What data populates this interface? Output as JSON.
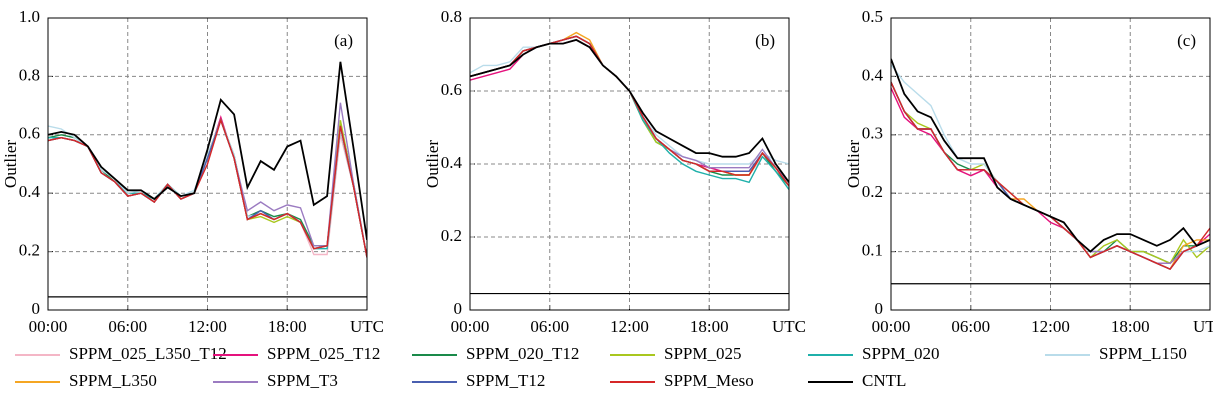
{
  "chart_data": {
    "type": "line",
    "ylabel": "Outlier",
    "x": [
      0,
      1,
      2,
      3,
      4,
      5,
      6,
      7,
      8,
      9,
      10,
      11,
      12,
      13,
      14,
      15,
      16,
      17,
      18,
      19,
      20,
      21,
      22,
      23,
      24
    ],
    "xlim": [
      0,
      24
    ],
    "xticks": [
      {
        "value": 0,
        "label": "00:00"
      },
      {
        "value": 6,
        "label": "06:00"
      },
      {
        "value": 12,
        "label": "12:00"
      },
      {
        "value": 18,
        "label": "18:00"
      },
      {
        "value": 24,
        "label": "UTC"
      }
    ],
    "grid": true,
    "panels": [
      {
        "label": "(a)",
        "ylim": [
          0,
          1
        ],
        "yticks": [
          0,
          0.2,
          0.4,
          0.6,
          0.8,
          {
            "value": 1,
            "label": "1.0"
          }
        ],
        "reference_line": 0.045
      },
      {
        "label": "(b)",
        "ylim": [
          0,
          0.8
        ],
        "yticks": [
          0,
          0.2,
          0.4,
          0.6,
          0.8
        ],
        "reference_line": 0.045
      },
      {
        "label": "(c)",
        "ylim": [
          0,
          0.5
        ],
        "yticks": [
          0,
          0.1,
          0.2,
          0.3,
          0.4,
          0.5
        ],
        "reference_line": 0.045
      }
    ],
    "series": [
      {
        "name": "SPPM_025_L350_T12",
        "color": "#f4b6c6",
        "values": [
          [
            0.58,
            0.59,
            0.58,
            0.56,
            0.47,
            0.44,
            0.39,
            0.4,
            0.37,
            0.43,
            0.38,
            0.4,
            0.52,
            0.65,
            0.52,
            0.31,
            0.33,
            0.31,
            0.33,
            0.3,
            0.19,
            0.19,
            0.6,
            0.42,
            0.18
          ],
          [
            0.64,
            0.65,
            0.66,
            0.67,
            0.71,
            0.72,
            0.73,
            0.74,
            0.75,
            0.73,
            0.67,
            0.64,
            0.6,
            0.53,
            0.47,
            0.44,
            0.41,
            0.4,
            0.38,
            0.38,
            0.37,
            0.37,
            0.42,
            0.39,
            0.34
          ],
          [
            0.39,
            0.34,
            0.31,
            0.31,
            0.27,
            0.24,
            0.24,
            0.24,
            0.22,
            0.19,
            0.18,
            0.17,
            0.16,
            0.14,
            0.12,
            0.09,
            0.1,
            0.11,
            0.1,
            0.09,
            0.08,
            0.07,
            0.1,
            0.11,
            0.12
          ]
        ]
      },
      {
        "name": "SPPM_025_T12",
        "color": "#e5127d",
        "values": [
          [
            0.58,
            0.59,
            0.58,
            0.56,
            0.47,
            0.44,
            0.39,
            0.4,
            0.37,
            0.43,
            0.38,
            0.4,
            0.52,
            0.66,
            0.52,
            0.31,
            0.33,
            0.31,
            0.33,
            0.3,
            0.21,
            0.22,
            0.63,
            0.42,
            0.18
          ],
          [
            0.63,
            0.64,
            0.65,
            0.66,
            0.7,
            0.72,
            0.73,
            0.73,
            0.74,
            0.72,
            0.67,
            0.64,
            0.6,
            0.53,
            0.47,
            0.44,
            0.41,
            0.4,
            0.39,
            0.38,
            0.38,
            0.38,
            0.43,
            0.39,
            0.34
          ],
          [
            0.38,
            0.33,
            0.31,
            0.3,
            0.27,
            0.24,
            0.23,
            0.24,
            0.21,
            0.19,
            0.18,
            0.17,
            0.15,
            0.14,
            0.12,
            0.09,
            0.1,
            0.11,
            0.1,
            0.09,
            0.08,
            0.08,
            0.1,
            0.11,
            0.13
          ]
        ]
      },
      {
        "name": "SPPM_020_T12",
        "color": "#1a8a4a",
        "values": [
          [
            0.59,
            0.6,
            0.59,
            0.56,
            0.48,
            0.44,
            0.4,
            0.4,
            0.38,
            0.43,
            0.39,
            0.4,
            0.53,
            0.65,
            0.53,
            0.32,
            0.34,
            0.32,
            0.33,
            0.31,
            0.22,
            0.22,
            0.64,
            0.43,
            0.18
          ],
          [
            0.64,
            0.65,
            0.66,
            0.67,
            0.71,
            0.72,
            0.73,
            0.74,
            0.75,
            0.73,
            0.67,
            0.64,
            0.6,
            0.52,
            0.46,
            0.44,
            0.41,
            0.4,
            0.38,
            0.37,
            0.37,
            0.37,
            0.43,
            0.38,
            0.34
          ],
          [
            0.39,
            0.34,
            0.31,
            0.31,
            0.27,
            0.25,
            0.24,
            0.24,
            0.22,
            0.19,
            0.18,
            0.17,
            0.16,
            0.14,
            0.12,
            0.1,
            0.1,
            0.12,
            0.1,
            0.1,
            0.09,
            0.08,
            0.11,
            0.11,
            0.12
          ]
        ]
      },
      {
        "name": "SPPM_025",
        "color": "#a9c71f",
        "values": [
          [
            0.58,
            0.59,
            0.58,
            0.56,
            0.47,
            0.44,
            0.39,
            0.4,
            0.37,
            0.43,
            0.38,
            0.4,
            0.52,
            0.65,
            0.52,
            0.31,
            0.32,
            0.3,
            0.32,
            0.3,
            0.21,
            0.22,
            0.65,
            0.42,
            0.18
          ],
          [
            0.64,
            0.65,
            0.66,
            0.67,
            0.71,
            0.72,
            0.73,
            0.74,
            0.75,
            0.73,
            0.67,
            0.64,
            0.6,
            0.52,
            0.46,
            0.44,
            0.41,
            0.4,
            0.38,
            0.38,
            0.37,
            0.37,
            0.43,
            0.39,
            0.34
          ],
          [
            0.39,
            0.34,
            0.32,
            0.31,
            0.27,
            0.24,
            0.24,
            0.25,
            0.22,
            0.2,
            0.18,
            0.17,
            0.16,
            0.14,
            0.12,
            0.09,
            0.11,
            0.12,
            0.1,
            0.1,
            0.09,
            0.08,
            0.12,
            0.09,
            0.11
          ]
        ]
      },
      {
        "name": "SPPM_020",
        "color": "#1fb0aa",
        "values": [
          [
            0.59,
            0.59,
            0.58,
            0.56,
            0.47,
            0.44,
            0.4,
            0.4,
            0.38,
            0.43,
            0.39,
            0.4,
            0.52,
            0.65,
            0.52,
            0.32,
            0.33,
            0.31,
            0.33,
            0.3,
            0.21,
            0.21,
            0.62,
            0.42,
            0.18
          ],
          [
            0.64,
            0.65,
            0.66,
            0.67,
            0.71,
            0.72,
            0.73,
            0.74,
            0.75,
            0.73,
            0.67,
            0.64,
            0.6,
            0.52,
            0.47,
            0.43,
            0.4,
            0.38,
            0.37,
            0.36,
            0.36,
            0.35,
            0.42,
            0.38,
            0.33
          ],
          [
            0.39,
            0.34,
            0.31,
            0.31,
            0.27,
            0.24,
            0.24,
            0.24,
            0.22,
            0.19,
            0.18,
            0.17,
            0.16,
            0.14,
            0.12,
            0.09,
            0.1,
            0.11,
            0.1,
            0.09,
            0.08,
            0.07,
            0.1,
            0.11,
            0.12
          ]
        ]
      },
      {
        "name": "SPPM_L150",
        "color": "#b9dcea",
        "values": [
          [
            0.63,
            0.62,
            0.59,
            0.56,
            0.48,
            0.45,
            0.4,
            0.41,
            0.38,
            0.43,
            0.39,
            0.41,
            0.53,
            0.65,
            0.53,
            0.32,
            0.33,
            0.31,
            0.33,
            0.3,
            0.21,
            0.22,
            0.62,
            0.43,
            0.18
          ],
          [
            0.65,
            0.67,
            0.67,
            0.68,
            0.72,
            0.72,
            0.73,
            0.74,
            0.75,
            0.73,
            0.67,
            0.64,
            0.6,
            0.53,
            0.48,
            0.45,
            0.42,
            0.41,
            0.4,
            0.4,
            0.4,
            0.4,
            0.43,
            0.41,
            0.4
          ],
          [
            0.42,
            0.39,
            0.37,
            0.35,
            0.3,
            0.26,
            0.25,
            0.25,
            0.22,
            0.2,
            0.18,
            0.17,
            0.16,
            0.14,
            0.12,
            0.1,
            0.1,
            0.11,
            0.1,
            0.09,
            0.08,
            0.07,
            0.1,
            0.1,
            0.11
          ]
        ]
      },
      {
        "name": "SPPM_L350",
        "color": "#f5a623",
        "values": [
          [
            0.58,
            0.59,
            0.58,
            0.56,
            0.47,
            0.44,
            0.39,
            0.4,
            0.37,
            0.43,
            0.38,
            0.4,
            0.52,
            0.65,
            0.52,
            0.31,
            0.33,
            0.31,
            0.33,
            0.3,
            0.21,
            0.22,
            0.63,
            0.42,
            0.18
          ],
          [
            0.64,
            0.65,
            0.66,
            0.67,
            0.71,
            0.72,
            0.73,
            0.74,
            0.76,
            0.74,
            0.67,
            0.64,
            0.6,
            0.53,
            0.47,
            0.44,
            0.41,
            0.4,
            0.38,
            0.38,
            0.37,
            0.37,
            0.43,
            0.39,
            0.34
          ],
          [
            0.39,
            0.34,
            0.31,
            0.31,
            0.27,
            0.24,
            0.24,
            0.24,
            0.22,
            0.19,
            0.19,
            0.17,
            0.16,
            0.14,
            0.12,
            0.09,
            0.1,
            0.11,
            0.1,
            0.09,
            0.08,
            0.07,
            0.11,
            0.12,
            0.12
          ]
        ]
      },
      {
        "name": "SPPM_T3",
        "color": "#9b7bc1",
        "values": [
          [
            0.58,
            0.59,
            0.58,
            0.56,
            0.47,
            0.44,
            0.39,
            0.4,
            0.37,
            0.43,
            0.38,
            0.4,
            0.52,
            0.65,
            0.52,
            0.34,
            0.37,
            0.34,
            0.36,
            0.35,
            0.22,
            0.22,
            0.71,
            0.43,
            0.18
          ],
          [
            0.64,
            0.65,
            0.66,
            0.67,
            0.71,
            0.72,
            0.73,
            0.74,
            0.75,
            0.73,
            0.67,
            0.64,
            0.6,
            0.53,
            0.47,
            0.44,
            0.42,
            0.41,
            0.39,
            0.39,
            0.39,
            0.39,
            0.44,
            0.39,
            0.35
          ],
          [
            0.39,
            0.34,
            0.31,
            0.31,
            0.27,
            0.24,
            0.24,
            0.24,
            0.22,
            0.19,
            0.18,
            0.17,
            0.16,
            0.14,
            0.12,
            0.1,
            0.1,
            0.11,
            0.1,
            0.09,
            0.08,
            0.08,
            0.1,
            0.11,
            0.12
          ]
        ]
      },
      {
        "name": "SPPM_T12",
        "color": "#4a5fb0",
        "values": [
          [
            0.58,
            0.59,
            0.58,
            0.56,
            0.47,
            0.44,
            0.39,
            0.4,
            0.37,
            0.43,
            0.38,
            0.4,
            0.52,
            0.65,
            0.52,
            0.31,
            0.34,
            0.31,
            0.33,
            0.3,
            0.21,
            0.22,
            0.63,
            0.42,
            0.18
          ],
          [
            0.64,
            0.65,
            0.66,
            0.67,
            0.71,
            0.72,
            0.73,
            0.74,
            0.75,
            0.73,
            0.67,
            0.64,
            0.6,
            0.53,
            0.47,
            0.44,
            0.41,
            0.4,
            0.38,
            0.38,
            0.38,
            0.38,
            0.43,
            0.39,
            0.34
          ],
          [
            0.39,
            0.34,
            0.31,
            0.31,
            0.27,
            0.24,
            0.24,
            0.24,
            0.22,
            0.19,
            0.18,
            0.17,
            0.16,
            0.14,
            0.12,
            0.09,
            0.1,
            0.11,
            0.1,
            0.09,
            0.08,
            0.07,
            0.1,
            0.11,
            0.12
          ]
        ]
      },
      {
        "name": "SPPM_Meso",
        "color": "#d62728",
        "values": [
          [
            0.58,
            0.59,
            0.58,
            0.56,
            0.47,
            0.44,
            0.39,
            0.4,
            0.37,
            0.43,
            0.38,
            0.4,
            0.5,
            0.65,
            0.52,
            0.31,
            0.33,
            0.31,
            0.33,
            0.3,
            0.21,
            0.22,
            0.63,
            0.42,
            0.18
          ],
          [
            0.64,
            0.65,
            0.66,
            0.67,
            0.71,
            0.72,
            0.73,
            0.74,
            0.75,
            0.73,
            0.67,
            0.64,
            0.6,
            0.53,
            0.47,
            0.44,
            0.41,
            0.4,
            0.38,
            0.38,
            0.37,
            0.37,
            0.43,
            0.39,
            0.34
          ],
          [
            0.39,
            0.34,
            0.31,
            0.31,
            0.27,
            0.24,
            0.24,
            0.24,
            0.22,
            0.2,
            0.18,
            0.17,
            0.16,
            0.14,
            0.12,
            0.09,
            0.1,
            0.11,
            0.1,
            0.09,
            0.08,
            0.07,
            0.1,
            0.11,
            0.14
          ]
        ]
      },
      {
        "name": "CNTL",
        "color": "#000000",
        "values": [
          [
            0.6,
            0.61,
            0.6,
            0.56,
            0.49,
            0.45,
            0.41,
            0.41,
            0.38,
            0.42,
            0.39,
            0.4,
            0.55,
            0.72,
            0.67,
            0.42,
            0.51,
            0.48,
            0.56,
            0.58,
            0.36,
            0.39,
            0.85,
            0.55,
            0.24
          ],
          [
            0.64,
            0.65,
            0.66,
            0.67,
            0.7,
            0.72,
            0.73,
            0.73,
            0.74,
            0.72,
            0.67,
            0.64,
            0.6,
            0.54,
            0.49,
            0.47,
            0.45,
            0.43,
            0.43,
            0.42,
            0.42,
            0.43,
            0.47,
            0.4,
            0.35
          ],
          [
            0.43,
            0.37,
            0.34,
            0.33,
            0.29,
            0.26,
            0.26,
            0.26,
            0.21,
            0.19,
            0.18,
            0.17,
            0.16,
            0.15,
            0.12,
            0.1,
            0.12,
            0.13,
            0.13,
            0.12,
            0.11,
            0.12,
            0.14,
            0.11,
            0.12
          ]
        ]
      }
    ]
  }
}
